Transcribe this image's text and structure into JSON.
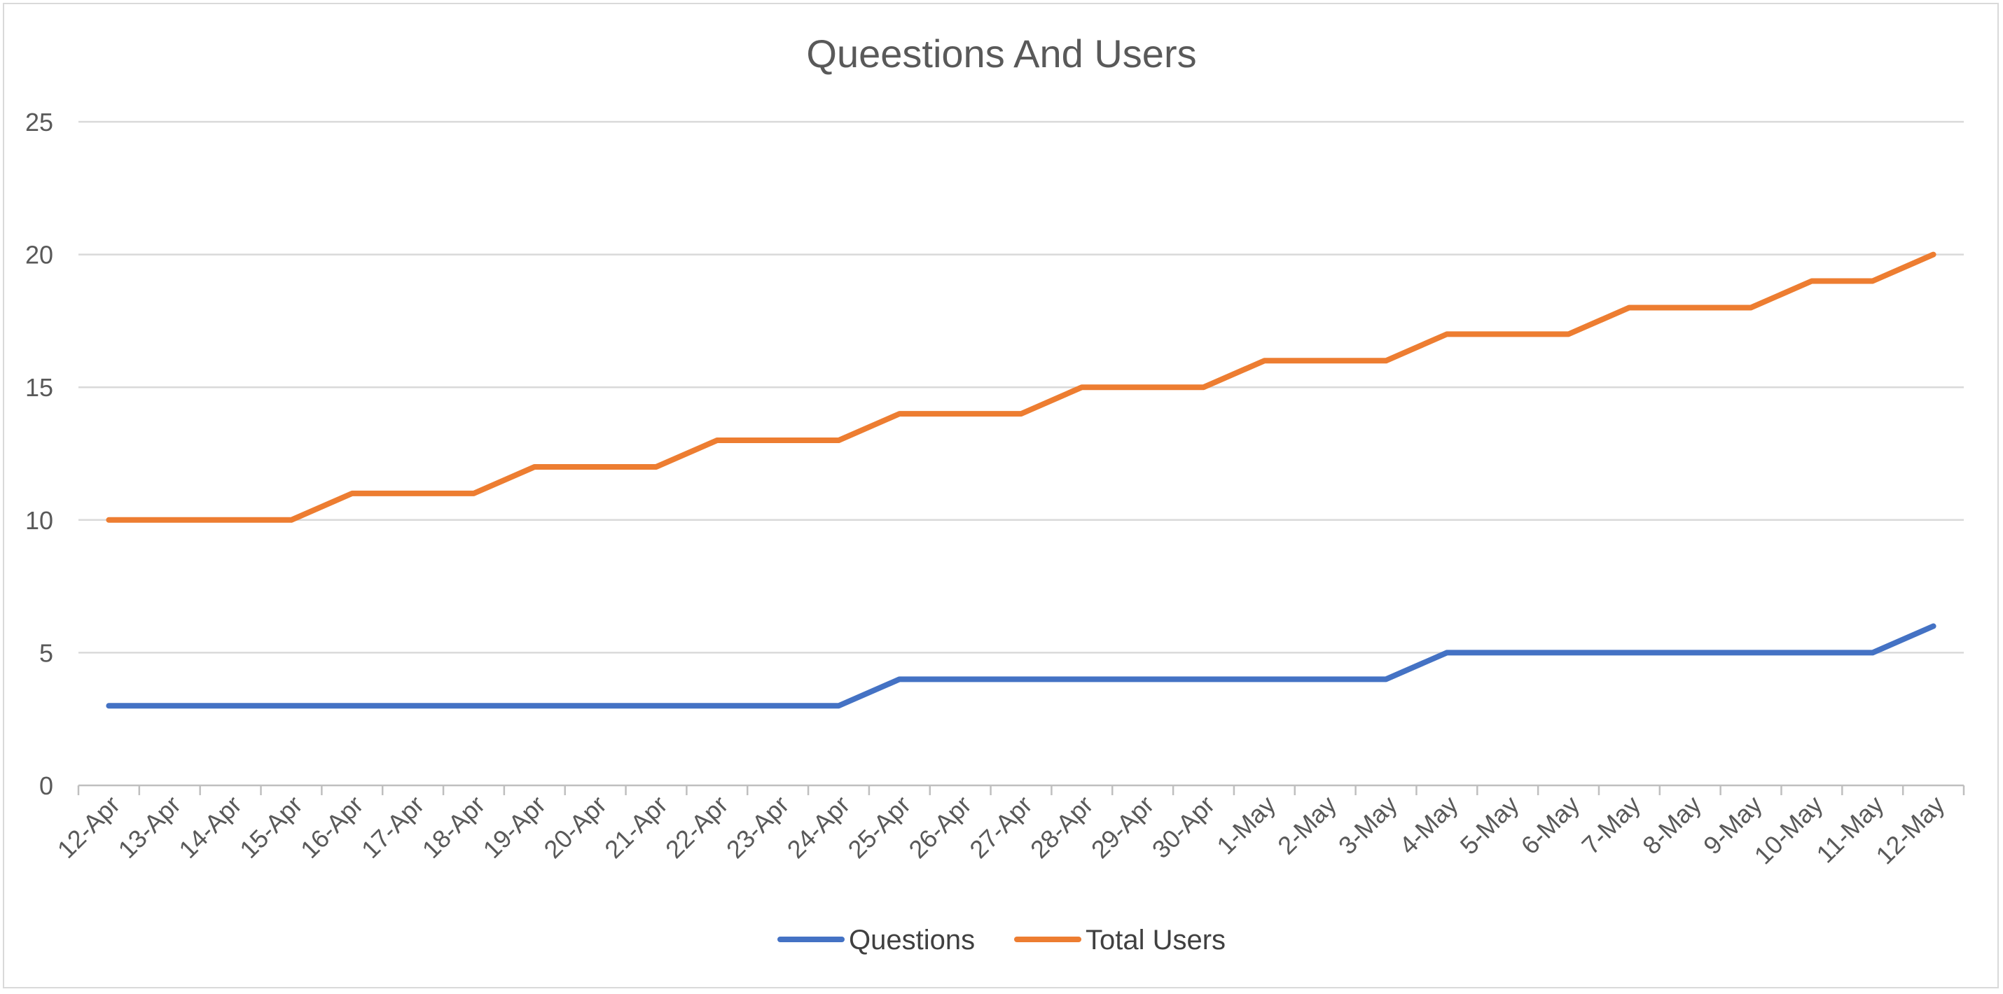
{
  "chart_data": {
    "type": "line",
    "title": "Queestions And Users",
    "xlabel": "",
    "ylabel": "",
    "categories": [
      "12-Apr",
      "13-Apr",
      "14-Apr",
      "15-Apr",
      "16-Apr",
      "17-Apr",
      "18-Apr",
      "19-Apr",
      "20-Apr",
      "21-Apr",
      "22-Apr",
      "23-Apr",
      "24-Apr",
      "25-Apr",
      "26-Apr",
      "27-Apr",
      "28-Apr",
      "29-Apr",
      "30-Apr",
      "1-May",
      "2-May",
      "3-May",
      "4-May",
      "5-May",
      "6-May",
      "7-May",
      "8-May",
      "9-May",
      "10-May",
      "11-May",
      "12-May"
    ],
    "series": [
      {
        "name": "Questions",
        "color": "#4472c4",
        "values": [
          3,
          3,
          3,
          3,
          3,
          3,
          3,
          3,
          3,
          3,
          3,
          3,
          3,
          4,
          4,
          4,
          4,
          4,
          4,
          4,
          4,
          4,
          5,
          5,
          5,
          5,
          5,
          5,
          5,
          5,
          6
        ]
      },
      {
        "name": "Total Users",
        "color": "#ed7d31",
        "values": [
          10,
          10,
          10,
          10,
          11,
          11,
          11,
          12,
          12,
          12,
          13,
          13,
          13,
          14,
          14,
          14,
          15,
          15,
          15,
          16,
          16,
          16,
          17,
          17,
          17,
          18,
          18,
          18,
          19,
          19,
          20
        ]
      }
    ],
    "ylim": [
      0,
      25
    ],
    "yticks": [
      0,
      5,
      10,
      15,
      20,
      25
    ],
    "grid": true,
    "legend": "bottom",
    "gridColor": "#d9d9d9",
    "axisColor": "#bfbfbf"
  }
}
